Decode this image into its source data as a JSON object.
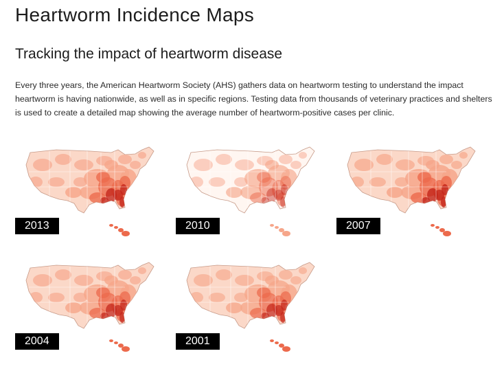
{
  "header": {
    "title": "Heartworm Incidence Maps"
  },
  "section": {
    "heading": "Tracking the impact of heartworm disease",
    "body": "Every three years, the American Heartworm Society (AHS) gathers data on heartworm testing to understand the impact heartworm is having nationwide, as well as in specific regions. Testing data from thousands of veterinary practices and shelters is used to create a detailed map showing the average number of heartworm-positive cases per clinic."
  },
  "maps": [
    {
      "year": "2013",
      "intensity": 0.8
    },
    {
      "year": "2010",
      "intensity": 0.35
    },
    {
      "year": "2007",
      "intensity": 0.85
    },
    {
      "year": "2004",
      "intensity": 0.75
    },
    {
      "year": "2001",
      "intensity": 0.7
    }
  ],
  "colors": {
    "low": "#fbd8c8",
    "mid": "#f6a68a",
    "high": "#ec6a4c",
    "highest": "#c4251a",
    "label_bg": "#000000",
    "label_text": "#ffffff"
  }
}
